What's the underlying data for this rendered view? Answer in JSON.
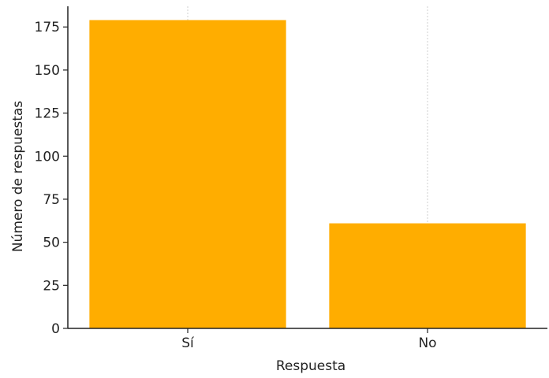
{
  "chart_data": {
    "type": "bar",
    "categories": [
      "Sí",
      "No"
    ],
    "values": [
      179,
      61
    ],
    "title": "",
    "xlabel": "Respuesta",
    "ylabel": "Número de respuestas",
    "ylim": [
      0,
      187
    ],
    "yticks": [
      0,
      25,
      50,
      75,
      100,
      125,
      150,
      175
    ],
    "grid": "vertical",
    "legend": "none",
    "colors": {
      "bar": "#ffad00",
      "grid": "#cfcfcf",
      "axis": "#222222"
    }
  }
}
